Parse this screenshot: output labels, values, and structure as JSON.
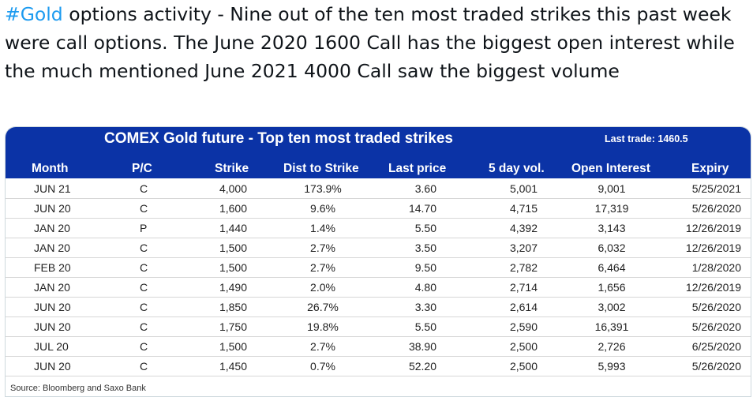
{
  "tweet": {
    "hashtag": "#Gold",
    "text": " options activity - Nine out of the ten most traded strikes this past week were call options. The June 2020 1600 Call has the biggest open interest while the much mentioned June 2021 4000 Call saw the biggest volume"
  },
  "table": {
    "title": "COMEX Gold future - Top ten most traded strikes",
    "last_trade": "Last trade:  1460.5",
    "headers": [
      "Month",
      "P/C",
      "Strike",
      "Dist to Strike",
      "Last price",
      "5 day vol.",
      "Open Interest",
      "Expiry"
    ],
    "rows": [
      [
        "JUN 21",
        "C",
        "4,000",
        "173.9%",
        "3.60",
        "5,001",
        "9,001",
        "5/25/2021"
      ],
      [
        "JUN 20",
        "C",
        "1,600",
        "9.6%",
        "14.70",
        "4,715",
        "17,319",
        "5/26/2020"
      ],
      [
        "JAN 20",
        "P",
        "1,440",
        "1.4%",
        "5.50",
        "4,392",
        "3,143",
        "12/26/2019"
      ],
      [
        "JAN 20",
        "C",
        "1,500",
        "2.7%",
        "3.50",
        "3,207",
        "6,032",
        "12/26/2019"
      ],
      [
        "FEB 20",
        "C",
        "1,500",
        "2.7%",
        "9.50",
        "2,782",
        "6,464",
        "1/28/2020"
      ],
      [
        "JAN 20",
        "C",
        "1,490",
        "2.0%",
        "4.80",
        "2,714",
        "1,656",
        "12/26/2019"
      ],
      [
        "JUN 20",
        "C",
        "1,850",
        "26.7%",
        "3.30",
        "2,614",
        "3,002",
        "5/26/2020"
      ],
      [
        "JUN 20",
        "C",
        "1,750",
        "19.8%",
        "5.50",
        "2,590",
        "16,391",
        "5/26/2020"
      ],
      [
        "JUL 20",
        "C",
        "1,500",
        "2.7%",
        "38.90",
        "2,500",
        "2,726",
        "6/25/2020"
      ],
      [
        "JUN 20",
        "C",
        "1,450",
        "0.7%",
        "52.20",
        "2,500",
        "5,993",
        "5/26/2020"
      ]
    ],
    "source": "Source: Bloomberg and Saxo Bank"
  },
  "colors": {
    "banner": "#0b33a6",
    "hashtag": "#1d9bf0"
  }
}
